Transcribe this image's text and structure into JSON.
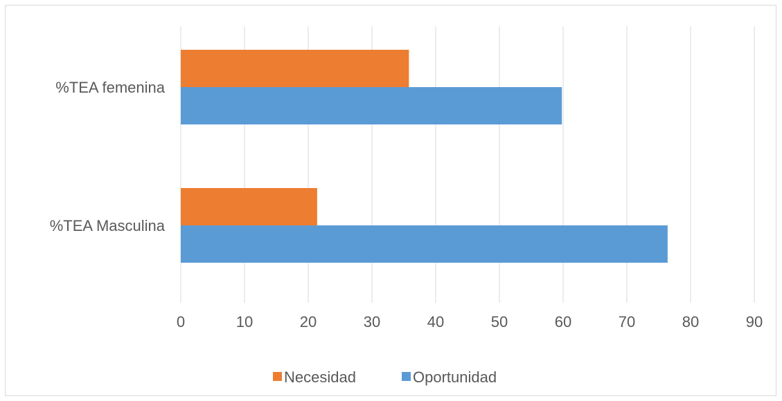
{
  "chart_data": {
    "type": "bar",
    "orientation": "horizontal",
    "categories": [
      "%TEA femenina",
      "%TEA Masculina"
    ],
    "series": [
      {
        "name": "Necesidad",
        "values": [
          35.8,
          21.4
        ],
        "color": "#ED7D31"
      },
      {
        "name": "Oportunidad",
        "values": [
          59.8,
          76.4
        ],
        "color": "#5B9BD5"
      }
    ],
    "xlim": [
      0,
      90
    ],
    "x_ticks": [
      "0",
      "10",
      "20",
      "30",
      "40",
      "50",
      "60",
      "70",
      "80",
      "90"
    ],
    "grid": true,
    "legend_position": "bottom",
    "gridline_color": "#d9d9d9"
  }
}
